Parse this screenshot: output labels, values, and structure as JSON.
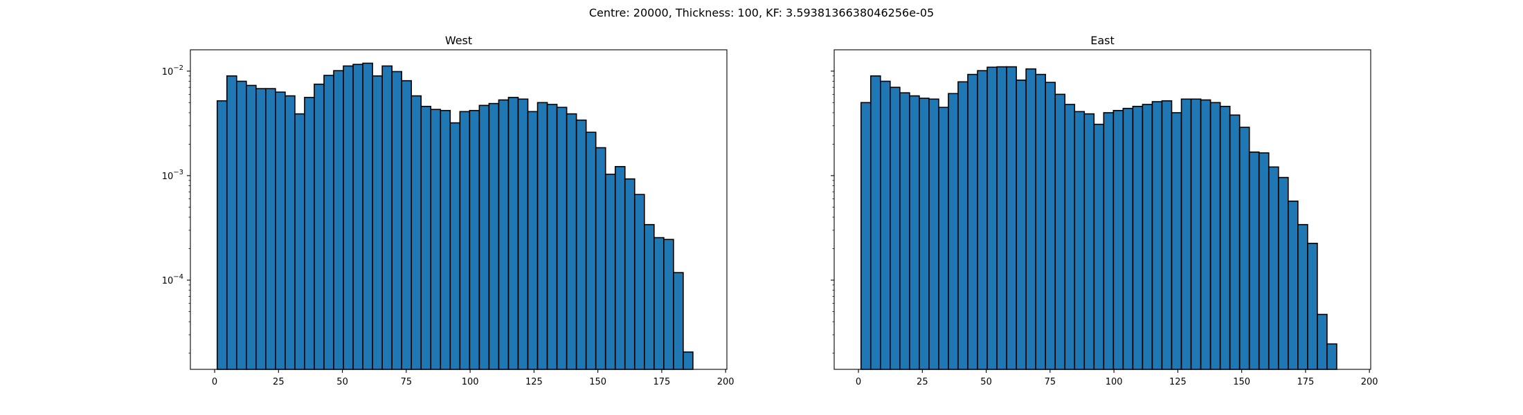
{
  "figure": {
    "suptitle": "Centre: 20000, Thickness: 100, KF: 3.5938136638046256e-05"
  },
  "chart_data": [
    {
      "type": "bar",
      "title": "West",
      "xlabel": "",
      "ylabel": "",
      "yscale": "log",
      "xlim": [
        -9.5,
        200.5
      ],
      "ylim": [
        1.4e-05,
        0.016
      ],
      "xticks": [
        0,
        25,
        50,
        75,
        100,
        125,
        150,
        175,
        200
      ],
      "yticks": [
        {
          "value": 0.01,
          "base": "10",
          "exp": "−2"
        },
        {
          "value": 0.001,
          "base": "10",
          "exp": "−3"
        },
        {
          "value": 0.0001,
          "base": "10",
          "exp": "−4"
        }
      ],
      "grid": false,
      "bin_start": 1,
      "bin_width": 3.8,
      "values": [
        0.0052,
        0.009,
        0.008,
        0.0073,
        0.0068,
        0.0068,
        0.0063,
        0.0058,
        0.0039,
        0.0056,
        0.0075,
        0.0091,
        0.0101,
        0.0112,
        0.0116,
        0.0119,
        0.009,
        0.0112,
        0.0099,
        0.0081,
        0.0058,
        0.0046,
        0.0043,
        0.0042,
        0.0032,
        0.0041,
        0.0042,
        0.0047,
        0.0049,
        0.0053,
        0.0056,
        0.0054,
        0.0041,
        0.005,
        0.0048,
        0.0045,
        0.0039,
        0.0034,
        0.0026,
        0.00185,
        0.00103,
        0.00122,
        0.00093,
        0.00066,
        0.00034,
        0.000255,
        0.000245,
        0.000118,
        2.05e-05
      ]
    },
    {
      "type": "bar",
      "title": "East",
      "xlabel": "",
      "ylabel": "",
      "yscale": "log",
      "xlim": [
        -9.5,
        200.5
      ],
      "ylim": [
        1.4e-05,
        0.016
      ],
      "xticks": [
        0,
        25,
        50,
        75,
        100,
        125,
        150,
        175,
        200
      ],
      "yticks": [],
      "grid": false,
      "bin_start": 1,
      "bin_width": 3.8,
      "values": [
        0.005,
        0.009,
        0.008,
        0.007,
        0.0062,
        0.0058,
        0.0055,
        0.0054,
        0.0045,
        0.0061,
        0.0079,
        0.0093,
        0.0101,
        0.0109,
        0.011,
        0.011,
        0.0082,
        0.0105,
        0.0093,
        0.0078,
        0.006,
        0.0048,
        0.0041,
        0.0039,
        0.0031,
        0.004,
        0.0042,
        0.0044,
        0.0046,
        0.0048,
        0.0051,
        0.0052,
        0.004,
        0.0054,
        0.0054,
        0.0053,
        0.005,
        0.0046,
        0.0038,
        0.0029,
        0.00168,
        0.00165,
        0.00121,
        0.00096,
        0.00057,
        0.00034,
        0.000225,
        4.7e-05,
        2.45e-05
      ]
    }
  ],
  "colors": {
    "bar_fill": "#1f77b4",
    "bar_edge": "#000000",
    "axes_edge": "#000000"
  }
}
